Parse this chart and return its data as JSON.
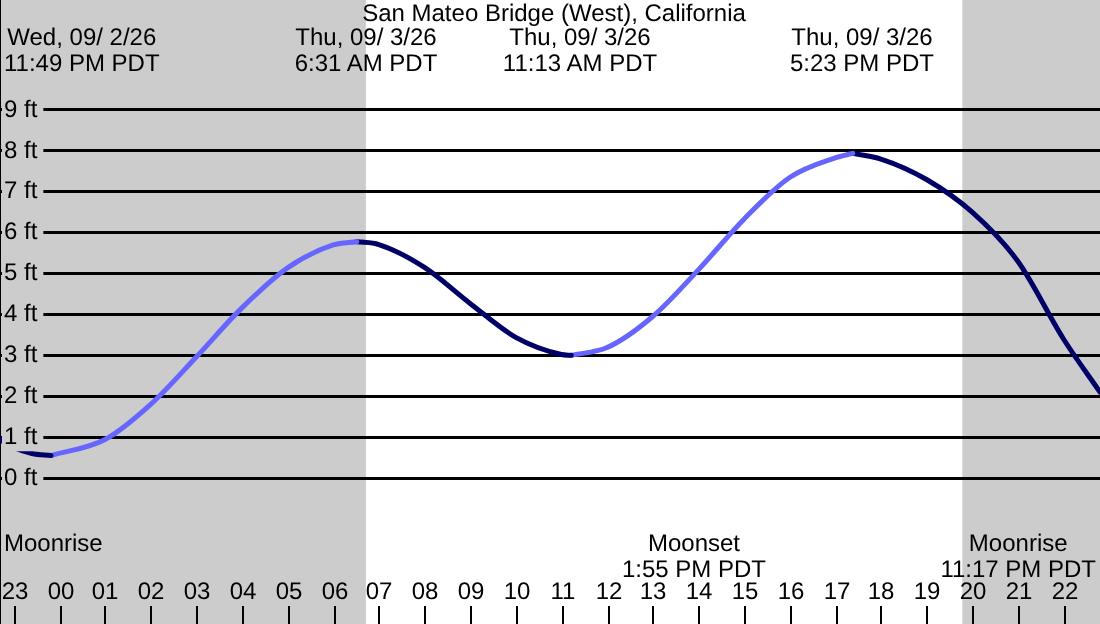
{
  "chart_data": {
    "type": "line",
    "title": "San Mateo Bridge (West), California",
    "xlim": [
      "--09-02T22:42",
      "--09-03T22:48"
    ],
    "xticks": [
      {
        "value": "--09-02T23:00",
        "label": "23"
      },
      {
        "value": "--09-03T00:00",
        "label": "00"
      },
      {
        "value": "--09-03T01:00",
        "label": "01"
      },
      {
        "value": "--09-03T02:00",
        "label": "02"
      },
      {
        "value": "--09-03T03:00",
        "label": "03"
      },
      {
        "value": "--09-03T04:00",
        "label": "04"
      },
      {
        "value": "--09-03T05:00",
        "label": "05"
      },
      {
        "value": "--09-03T06:00",
        "label": "06"
      },
      {
        "value": "--09-03T07:00",
        "label": "07"
      },
      {
        "value": "--09-03T08:00",
        "label": "08"
      },
      {
        "value": "--09-03T09:00",
        "label": "09"
      },
      {
        "value": "--09-03T10:00",
        "label": "10"
      },
      {
        "value": "--09-03T11:00",
        "label": "11"
      },
      {
        "value": "--09-03T12:00",
        "label": "12"
      },
      {
        "value": "--09-03T13:00",
        "label": "13"
      },
      {
        "value": "--09-03T14:00",
        "label": "14"
      },
      {
        "value": "--09-03T15:00",
        "label": "15"
      },
      {
        "value": "--09-03T16:00",
        "label": "16"
      },
      {
        "value": "--09-03T17:00",
        "label": "17"
      },
      {
        "value": "--09-03T18:00",
        "label": "18"
      },
      {
        "value": "--09-03T19:00",
        "label": "19"
      },
      {
        "value": "--09-03T20:00",
        "label": "20"
      },
      {
        "value": "--09-03T21:00",
        "label": "21"
      },
      {
        "value": "--09-03T22:00",
        "label": "22"
      }
    ],
    "ylim": [
      -3.57,
      11.69
    ],
    "yticks": [
      {
        "value": 0,
        "label": "0 ft"
      },
      {
        "value": 1,
        "label": "1 ft"
      },
      {
        "value": 2,
        "label": "2 ft"
      },
      {
        "value": 3,
        "label": "3 ft"
      },
      {
        "value": 4,
        "label": "4 ft"
      },
      {
        "value": 5,
        "label": "5 ft"
      },
      {
        "value": 6,
        "label": "6 ft"
      },
      {
        "value": 7,
        "label": "7 ft"
      },
      {
        "value": 8,
        "label": "8 ft"
      },
      {
        "value": 9,
        "label": "9 ft"
      }
    ],
    "grid": "y",
    "legend": false,
    "marker": "none",
    "line_style": "solid",
    "series": [
      {
        "color": "#000066",
        "x": [
          "--09-02T22:42",
          "--09-02T23:00",
          "--09-02T23:24",
          "--09-02T23:49"
        ],
        "values": [
          0.93,
          0.75,
          0.6,
          0.55
        ]
      },
      {
        "color": "#6666ff",
        "x": [
          "--09-02T23:49",
          "--09-03T01:00",
          "--09-03T02:00",
          "--09-03T03:00",
          "--09-03T04:00",
          "--09-03T05:00",
          "--09-03T06:00",
          "--09-03T06:31"
        ],
        "values": [
          0.55,
          0.94,
          1.8,
          2.96,
          4.16,
          5.14,
          5.7,
          5.78
        ]
      },
      {
        "color": "#000066",
        "x": [
          "--09-03T06:31",
          "--09-03T07:00",
          "--09-03T08:00",
          "--09-03T09:00",
          "--09-03T10:00",
          "--09-03T11:00",
          "--09-03T11:13"
        ],
        "values": [
          5.78,
          5.71,
          5.15,
          4.27,
          3.44,
          3.02,
          3.0
        ]
      },
      {
        "color": "#6666ff",
        "x": [
          "--09-03T11:13",
          "--09-03T12:00",
          "--09-03T13:00",
          "--09-03T14:00",
          "--09-03T15:00",
          "--09-03T16:00",
          "--09-03T17:00",
          "--09-03T17:23"
        ],
        "values": [
          3.0,
          3.19,
          3.95,
          5.09,
          6.33,
          7.35,
          7.83,
          7.94
        ]
      },
      {
        "color": "#000066",
        "x": [
          "--09-03T17:23",
          "--09-03T18:00",
          "--09-03T19:00",
          "--09-03T20:00",
          "--09-03T21:00",
          "--09-03T22:00",
          "--09-03T22:48"
        ],
        "values": [
          7.94,
          7.8,
          7.3,
          6.5,
          5.3,
          3.4,
          2.1
        ]
      }
    ],
    "bands": [
      {
        "axis": "x",
        "from": "--09-02T22:42",
        "to": "--09-03T06:43",
        "color": "#cccccc"
      },
      {
        "axis": "x",
        "from": "--09-03T19:47",
        "to": "--09-03T22:48",
        "color": "#cccccc"
      }
    ],
    "annotations": [
      "Wed, 09/ 2/26\n11:49 PM PDT",
      "Thu, 09/ 3/26\n6:31 AM PDT",
      "Thu, 09/ 3/26\n11:13 AM PDT",
      "Thu, 09/ 3/26\n5:23 PM PDT",
      "Moonrise",
      "Moonset\n1:55 PM PDT",
      "Moonrise\n11:17 PM PDT"
    ]
  }
}
